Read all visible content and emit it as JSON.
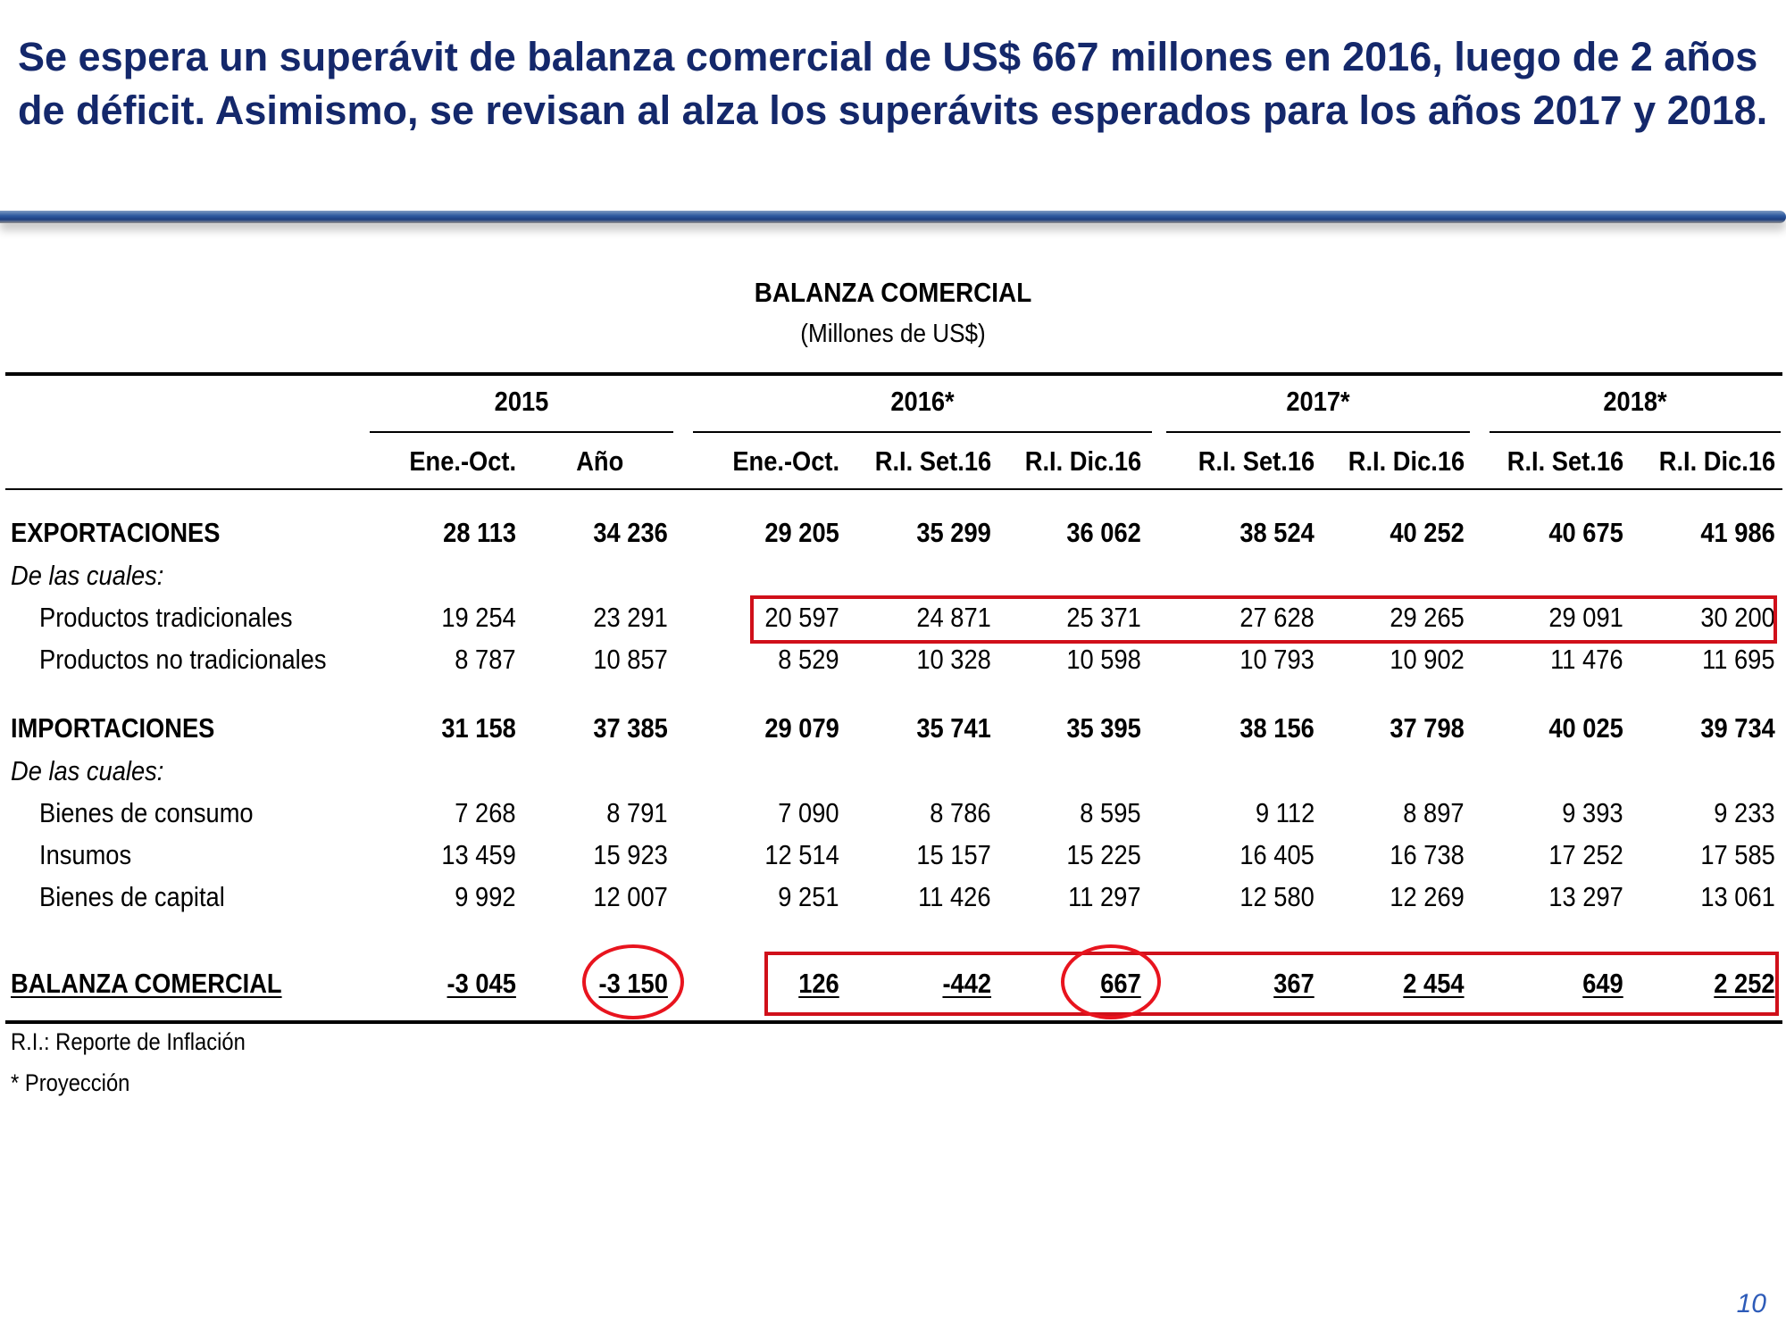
{
  "slide": {
    "title": "Se espera un superávit de balanza comercial de US$ 667 millones en 2016, luego de 2 años de déficit. Asimismo, se revisan al alza los superávits esperados para los años 2017 y 2018.",
    "page_number": "10"
  },
  "table": {
    "title": "BALANZA COMERCIAL",
    "subtitle": "(Millones de US$)",
    "groups": [
      "2015",
      "2016*",
      "2017*",
      "2018*"
    ],
    "columns": [
      "Ene.-Oct.",
      "Año",
      "Ene.-Oct.",
      "R.I. Set.16",
      "R.I. Dic.16",
      "R.I. Set.16",
      "R.I. Dic.16",
      "R.I. Set.16",
      "R.I. Dic.16"
    ],
    "rows": [
      {
        "label": "EXPORTACIONES",
        "values": [
          "28 113",
          "34 236",
          "29 205",
          "35 299",
          "36 062",
          "38 524",
          "40 252",
          "40 675",
          "41 986"
        ]
      },
      {
        "label": "De las cuales:",
        "values": []
      },
      {
        "label": "Productos tradicionales",
        "values": [
          "19 254",
          "23 291",
          "20 597",
          "24 871",
          "25 371",
          "27 628",
          "29 265",
          "29 091",
          "30 200"
        ]
      },
      {
        "label": "Productos no tradicionales",
        "values": [
          "8 787",
          "10 857",
          "8 529",
          "10 328",
          "10 598",
          "10 793",
          "10 902",
          "11 476",
          "11 695"
        ]
      },
      {
        "label": "IMPORTACIONES",
        "values": [
          "31 158",
          "37 385",
          "29 079",
          "35 741",
          "35 395",
          "38 156",
          "37 798",
          "40 025",
          "39 734"
        ]
      },
      {
        "label": "De las cuales:",
        "values": []
      },
      {
        "label": "Bienes de consumo",
        "values": [
          "7 268",
          "8 791",
          "7 090",
          "8 786",
          "8 595",
          "9 112",
          "8 897",
          "9 393",
          "9 233"
        ]
      },
      {
        "label": "Insumos",
        "values": [
          "13 459",
          "15 923",
          "12 514",
          "15 157",
          "15 225",
          "16 405",
          "16 738",
          "17 252",
          "17 585"
        ]
      },
      {
        "label": "Bienes de capital",
        "values": [
          "9 992",
          "12 007",
          "9 251",
          "11 426",
          "11 297",
          "12 580",
          "12 269",
          "13 297",
          "13 061"
        ]
      },
      {
        "label": "BALANZA COMERCIAL",
        "values": [
          "-3 045",
          "-3 150",
          "126",
          "-442",
          "667",
          "367",
          "2 454",
          "649",
          "2 252"
        ]
      }
    ],
    "notes": [
      "R.I.: Reporte de Inflación",
      "* Proyección"
    ]
  },
  "colors": {
    "title": "#14286b",
    "highlight": "#d0101a",
    "page_number": "#2d5bb8"
  }
}
